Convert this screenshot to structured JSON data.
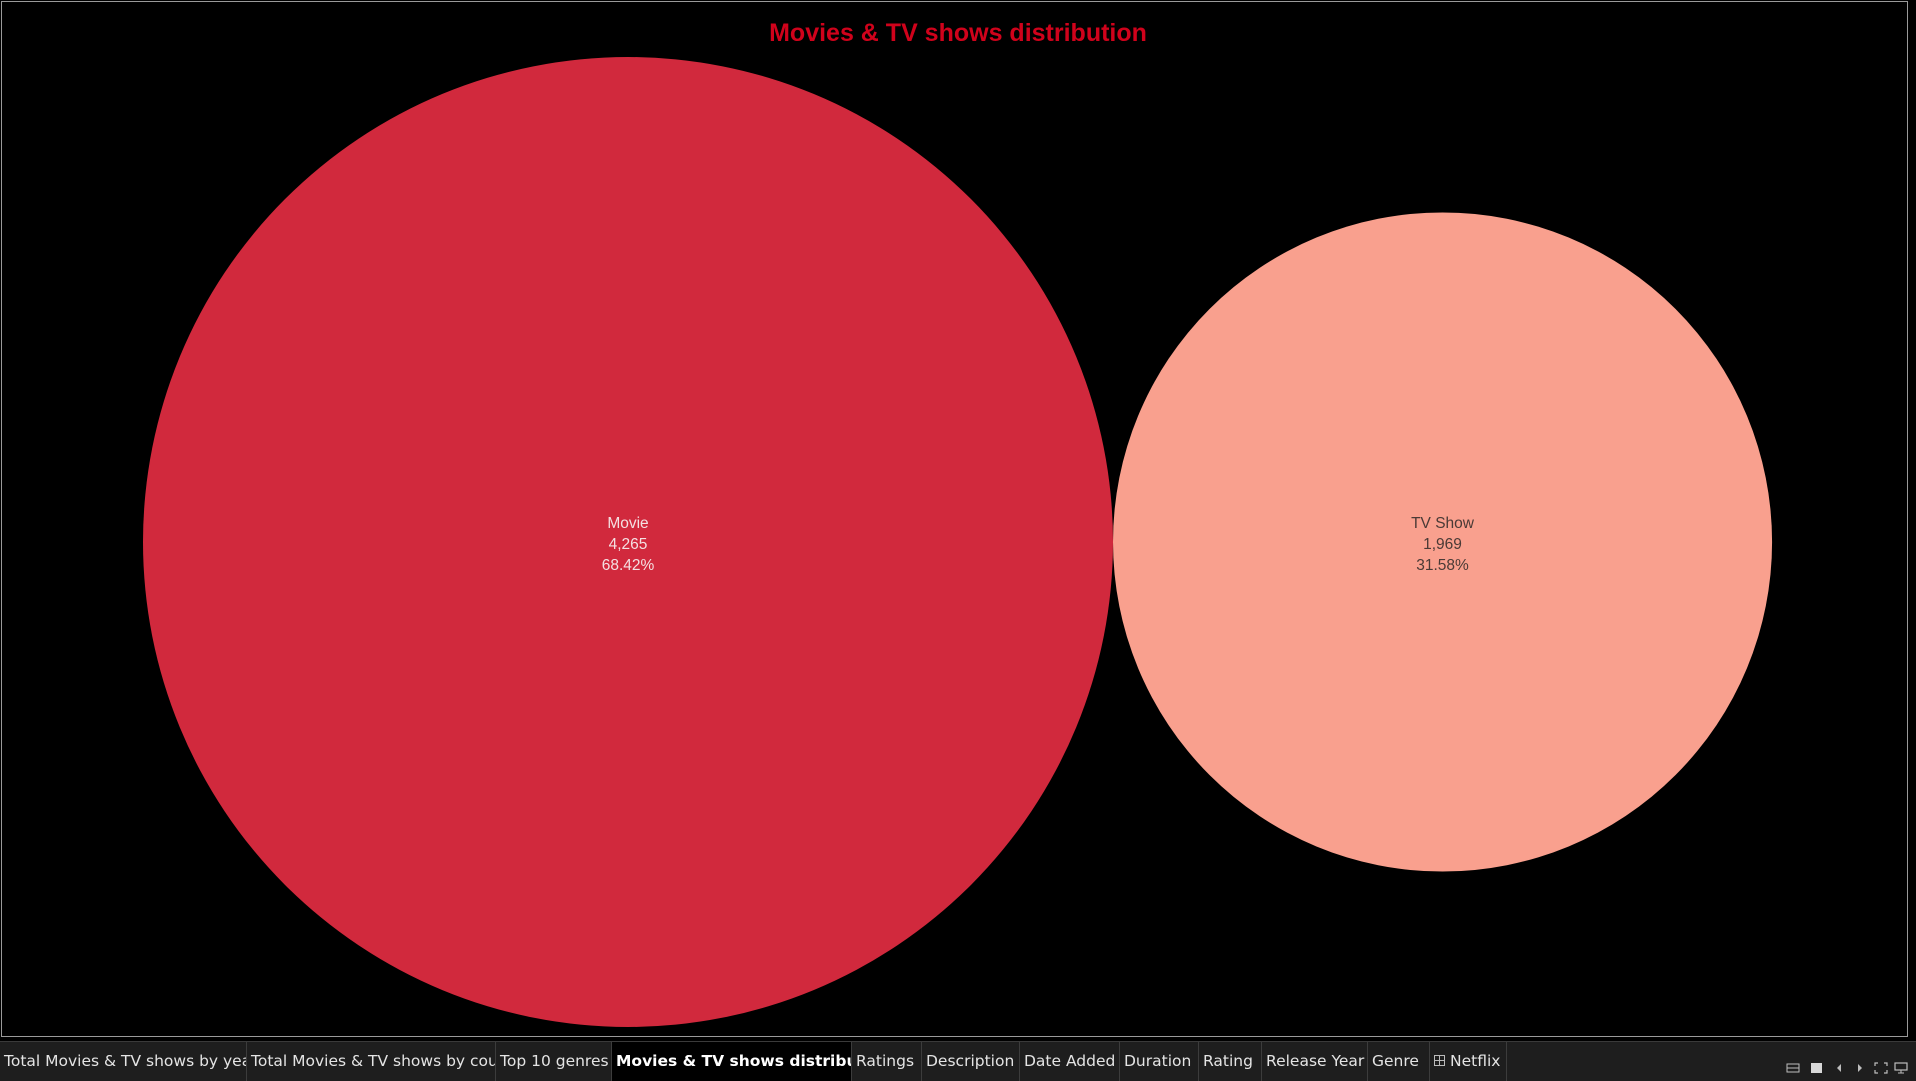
{
  "dashboard": {
    "title": "Movies & TV shows distribution",
    "title_color": "#d0021b"
  },
  "chart_data": {
    "type": "packed-bubble",
    "title": "Movies & TV shows distribution",
    "items": [
      {
        "label": "Movie",
        "value": 4265,
        "value_text": "4,265",
        "percent": 68.42,
        "percent_text": "68.42%",
        "color": "#d1293d",
        "label_color": "#f4e0e2"
      },
      {
        "label": "TV Show",
        "value": 1969,
        "value_text": "1,969",
        "percent": 31.58,
        "percent_text": "31.58%",
        "color": "#f9a08e",
        "label_color": "#4a3a36"
      }
    ]
  },
  "tabs": [
    {
      "label": "Total Movies & TV shows by years"
    },
    {
      "label": "Total Movies & TV shows by cou..."
    },
    {
      "label": "Top 10 genres"
    },
    {
      "label": "Movies & TV shows distribution",
      "active": true
    },
    {
      "label": "Ratings"
    },
    {
      "label": "Description"
    },
    {
      "label": "Date Added"
    },
    {
      "label": "Duration"
    },
    {
      "label": "Rating"
    },
    {
      "label": "Release Year"
    },
    {
      "label": "Genre"
    },
    {
      "label": "Netflix",
      "icon": "grid-icon"
    }
  ],
  "controls": [
    {
      "name": "view-thumbnails-icon"
    },
    {
      "name": "view-single-icon"
    },
    {
      "name": "previous-sheet-icon"
    },
    {
      "name": "next-sheet-icon"
    },
    {
      "name": "fullscreen-icon"
    },
    {
      "name": "presentation-mode-icon"
    }
  ]
}
